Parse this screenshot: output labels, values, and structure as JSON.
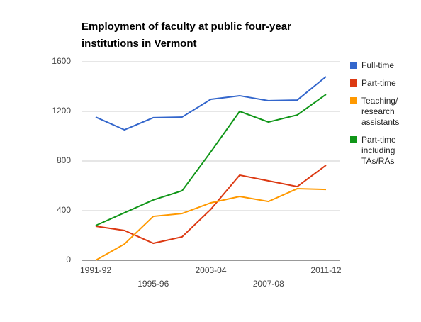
{
  "chart_data": {
    "type": "line",
    "title": "Employment of faculty at public four-year institutions in Vermont",
    "categories": [
      "1991-92",
      null,
      "1995-96",
      null,
      "2003-04",
      null,
      "2007-08",
      null,
      "2011-12"
    ],
    "series": [
      {
        "name": "Full-time",
        "color": "#3366cc",
        "values": [
          1154,
          1051,
          1149,
          1154,
          1297,
          1326,
          1286,
          1291,
          1480
        ]
      },
      {
        "name": "Part-time",
        "color": "#dc3912",
        "values": [
          274,
          240,
          137,
          189,
          411,
          686,
          640,
          594,
          766
        ]
      },
      {
        "name": "Teaching/ research assistants",
        "color": "#ff9900",
        "values": [
          0,
          131,
          354,
          377,
          463,
          514,
          474,
          577,
          571
        ]
      },
      {
        "name": "Part-time including TAs/RAs",
        "color": "#109618",
        "values": [
          280,
          383,
          486,
          560,
          874,
          1200,
          1114,
          1171,
          1337
        ]
      }
    ],
    "ylim": [
      0,
      1600
    ],
    "yticks": [
      0,
      400,
      800,
      1200,
      1600
    ],
    "grid": true,
    "legend": "right"
  }
}
